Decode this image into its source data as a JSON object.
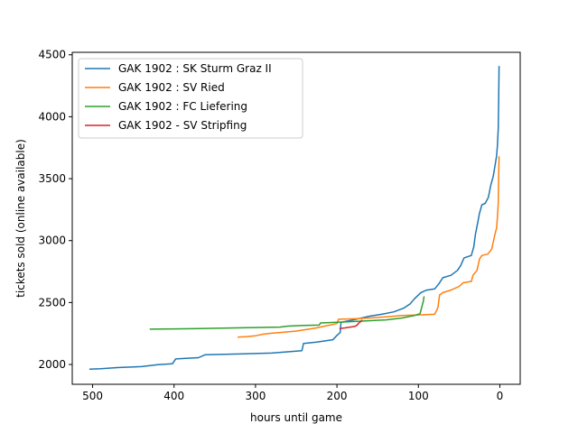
{
  "chart_data": {
    "type": "line",
    "xlabel": "hours until game",
    "ylabel": "tickets sold (online available)",
    "xlim": [
      525,
      -25
    ],
    "ylim": [
      1840,
      4520
    ],
    "x_ticks": [
      500,
      400,
      300,
      200,
      100,
      0
    ],
    "y_ticks": [
      2000,
      2500,
      3000,
      3500,
      4000,
      4500
    ],
    "x_inverted": true,
    "grid": false,
    "legend_position": "top-left",
    "series": [
      {
        "name": "GAK 1902 : SK Sturm Graz II",
        "color": "#1f77b4",
        "points": [
          [
            504,
            1962
          ],
          [
            490,
            1965
          ],
          [
            470,
            1975
          ],
          [
            440,
            1983
          ],
          [
            420,
            1998
          ],
          [
            402,
            2005
          ],
          [
            398,
            2045
          ],
          [
            370,
            2055
          ],
          [
            362,
            2078
          ],
          [
            320,
            2085
          ],
          [
            280,
            2092
          ],
          [
            250,
            2108
          ],
          [
            243,
            2112
          ],
          [
            241,
            2170
          ],
          [
            225,
            2180
          ],
          [
            205,
            2200
          ],
          [
            200,
            2235
          ],
          [
            196,
            2258
          ],
          [
            195,
            2340
          ],
          [
            180,
            2360
          ],
          [
            160,
            2390
          ],
          [
            145,
            2405
          ],
          [
            130,
            2425
          ],
          [
            118,
            2455
          ],
          [
            110,
            2490
          ],
          [
            105,
            2530
          ],
          [
            97,
            2580
          ],
          [
            90,
            2600
          ],
          [
            80,
            2610
          ],
          [
            75,
            2650
          ],
          [
            70,
            2700
          ],
          [
            60,
            2720
          ],
          [
            52,
            2760
          ],
          [
            48,
            2800
          ],
          [
            44,
            2860
          ],
          [
            35,
            2880
          ],
          [
            32,
            2950
          ],
          [
            30,
            3050
          ],
          [
            27,
            3150
          ],
          [
            25,
            3220
          ],
          [
            22,
            3290
          ],
          [
            18,
            3300
          ],
          [
            14,
            3350
          ],
          [
            11,
            3450
          ],
          [
            8,
            3520
          ],
          [
            6,
            3600
          ],
          [
            4,
            3680
          ],
          [
            3,
            3760
          ],
          [
            2,
            3900
          ],
          [
            1.5,
            4100
          ],
          [
            1,
            4410
          ]
        ]
      },
      {
        "name": "GAK 1902 : SV Ried",
        "color": "#ff7f0e",
        "points": [
          [
            322,
            2220
          ],
          [
            310,
            2225
          ],
          [
            300,
            2232
          ],
          [
            290,
            2245
          ],
          [
            280,
            2252
          ],
          [
            265,
            2260
          ],
          [
            250,
            2270
          ],
          [
            240,
            2280
          ],
          [
            225,
            2295
          ],
          [
            215,
            2310
          ],
          [
            200,
            2330
          ],
          [
            198,
            2365
          ],
          [
            175,
            2370
          ],
          [
            160,
            2375
          ],
          [
            140,
            2385
          ],
          [
            120,
            2395
          ],
          [
            100,
            2400
          ],
          [
            80,
            2405
          ],
          [
            76,
            2460
          ],
          [
            74,
            2560
          ],
          [
            70,
            2580
          ],
          [
            60,
            2600
          ],
          [
            50,
            2630
          ],
          [
            45,
            2660
          ],
          [
            35,
            2670
          ],
          [
            33,
            2720
          ],
          [
            28,
            2760
          ],
          [
            25,
            2850
          ],
          [
            22,
            2880
          ],
          [
            15,
            2890
          ],
          [
            10,
            2930
          ],
          [
            8,
            2990
          ],
          [
            6,
            3050
          ],
          [
            4,
            3100
          ],
          [
            3,
            3180
          ],
          [
            2,
            3300
          ],
          [
            1.5,
            3500
          ],
          [
            1,
            3680
          ]
        ]
      },
      {
        "name": "GAK 1902 : FC Liefering",
        "color": "#2ca02c",
        "points": [
          [
            430,
            2285
          ],
          [
            400,
            2287
          ],
          [
            370,
            2290
          ],
          [
            340,
            2293
          ],
          [
            310,
            2297
          ],
          [
            280,
            2300
          ],
          [
            270,
            2302
          ],
          [
            260,
            2310
          ],
          [
            240,
            2315
          ],
          [
            222,
            2318
          ],
          [
            220,
            2335
          ],
          [
            200,
            2340
          ],
          [
            190,
            2343
          ],
          [
            170,
            2350
          ],
          [
            155,
            2355
          ],
          [
            140,
            2360
          ],
          [
            120,
            2375
          ],
          [
            105,
            2395
          ],
          [
            98,
            2410
          ],
          [
            96,
            2460
          ],
          [
            94,
            2510
          ],
          [
            93,
            2550
          ]
        ]
      },
      {
        "name": "GAK 1902 - SV Stripfing",
        "color": "#d62728",
        "points": [
          [
            197,
            2290
          ],
          [
            190,
            2295
          ],
          [
            185,
            2300
          ],
          [
            180,
            2305
          ],
          [
            177,
            2310
          ],
          [
            175,
            2320
          ],
          [
            173,
            2335
          ],
          [
            171,
            2345
          ],
          [
            169,
            2360
          ]
        ]
      }
    ]
  }
}
